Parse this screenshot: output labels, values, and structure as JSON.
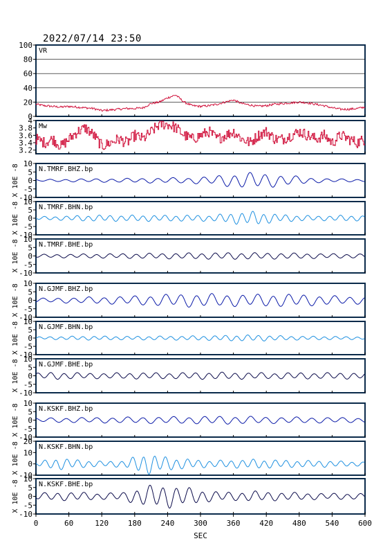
{
  "title": "2022/07/14 23:50",
  "colors": {
    "frame": "#0a2a4a",
    "vr": "#d0103a",
    "mw": "#d0103a",
    "bhz": "#0a1aa8",
    "bhn": "#1e90e0",
    "bhe": "#0a0a4a"
  },
  "x_axis": {
    "label": "SEC",
    "ticks": [
      0,
      60,
      120,
      180,
      240,
      300,
      360,
      420,
      480,
      540,
      600
    ],
    "range": [
      0,
      600
    ]
  },
  "chart_data": [
    {
      "type": "line",
      "panel": "vr",
      "label": "VR",
      "ylim": [
        0,
        100
      ],
      "yticks": [
        0,
        20,
        40,
        60,
        80,
        100
      ],
      "grid": true,
      "series": [
        {
          "x": [
            0,
            15,
            30,
            45,
            60,
            75,
            90,
            105,
            120,
            135,
            150,
            165,
            180,
            195,
            210,
            225,
            240,
            255,
            270,
            285,
            300,
            315,
            330,
            345,
            360,
            375,
            390,
            405,
            420,
            435,
            450,
            465,
            480,
            495,
            510,
            525,
            540,
            555,
            570,
            585,
            600
          ],
          "values": [
            17,
            15,
            14,
            13,
            14,
            13,
            12,
            11,
            8,
            9,
            10,
            11,
            11,
            12,
            18,
            20,
            26,
            30,
            20,
            15,
            14,
            15,
            17,
            20,
            23,
            18,
            16,
            14,
            15,
            17,
            18,
            19,
            20,
            19,
            17,
            15,
            12,
            10,
            10,
            11,
            13
          ]
        }
      ]
    },
    {
      "type": "line",
      "panel": "mw",
      "label": "Mw",
      "ylim": [
        3.1,
        4.0
      ],
      "yticks": [
        3.2,
        3.4,
        3.6,
        3.8,
        4.0
      ],
      "series": [
        {
          "x": [
            0,
            15,
            30,
            45,
            60,
            75,
            90,
            105,
            120,
            135,
            150,
            165,
            180,
            195,
            210,
            225,
            240,
            255,
            270,
            285,
            300,
            315,
            330,
            345,
            360,
            375,
            390,
            405,
            420,
            435,
            450,
            465,
            480,
            495,
            510,
            525,
            540,
            555,
            570,
            585,
            600
          ],
          "values": [
            3.5,
            3.4,
            3.5,
            3.3,
            3.5,
            3.7,
            3.8,
            3.6,
            3.3,
            3.4,
            3.5,
            3.4,
            3.6,
            3.5,
            3.7,
            3.9,
            3.9,
            3.8,
            3.6,
            3.5,
            3.6,
            3.7,
            3.5,
            3.6,
            3.7,
            3.5,
            3.4,
            3.6,
            3.7,
            3.5,
            3.5,
            3.6,
            3.7,
            3.6,
            3.5,
            3.6,
            3.4,
            3.6,
            3.5,
            3.4,
            3.5
          ]
        }
      ]
    },
    {
      "type": "line",
      "panel": "waveform",
      "label": "N.TMRF.BHZ.bp",
      "unit_label": "X 10E -8",
      "ylim": [
        -10,
        10
      ],
      "yticks": [
        -10,
        -5,
        0,
        5,
        10
      ],
      "color_key": "bhz",
      "series": [
        {
          "x": [
            0,
            40,
            80,
            120,
            160,
            200,
            240,
            280,
            320,
            360,
            400,
            440,
            480,
            520,
            560,
            600
          ],
          "amplitude": [
            0.5,
            0.6,
            0.8,
            0.9,
            1.0,
            1.2,
            1.3,
            1.5,
            2.0,
            3.5,
            4.0,
            3.0,
            2.0,
            1.0,
            0.8,
            0.6
          ]
        }
      ]
    },
    {
      "type": "line",
      "panel": "waveform",
      "label": "N.TMRF.BHN.bp",
      "unit_label": "X 10E -8",
      "ylim": [
        -10,
        10
      ],
      "yticks": [
        -10,
        -5,
        0,
        5,
        10
      ],
      "color_key": "bhn",
      "series": [
        {
          "x": [
            0,
            40,
            80,
            120,
            160,
            200,
            240,
            280,
            320,
            360,
            400,
            440,
            480,
            520,
            560,
            600
          ],
          "amplitude": [
            0.8,
            1.0,
            1.4,
            1.6,
            1.5,
            1.6,
            1.5,
            1.6,
            1.5,
            2.8,
            3.5,
            2.0,
            1.5,
            1.2,
            1.5,
            1.3
          ]
        }
      ]
    },
    {
      "type": "line",
      "panel": "waveform",
      "label": "N.TMRF.BHE.bp",
      "unit_label": "X 10E -8",
      "ylim": [
        -10,
        10
      ],
      "yticks": [
        -10,
        -5,
        0,
        5,
        10
      ],
      "color_key": "bhe",
      "series": [
        {
          "x": [
            0,
            40,
            80,
            120,
            160,
            200,
            240,
            280,
            320,
            360,
            400,
            440,
            480,
            520,
            560,
            600
          ],
          "amplitude": [
            0.8,
            0.9,
            1.0,
            1.1,
            1.2,
            1.3,
            1.4,
            1.5,
            1.6,
            1.7,
            1.6,
            1.5,
            1.4,
            1.2,
            1.1,
            1.0
          ]
        }
      ]
    },
    {
      "type": "line",
      "panel": "waveform",
      "label": "N.GJMF.BHZ.bp",
      "unit_label": "X 10E -8",
      "ylim": [
        -10,
        10
      ],
      "yticks": [
        -10,
        -5,
        0,
        5,
        10
      ],
      "color_key": "bhz",
      "series": [
        {
          "x": [
            0,
            40,
            80,
            120,
            160,
            200,
            240,
            280,
            320,
            360,
            400,
            440,
            480,
            520,
            560,
            600
          ],
          "amplitude": [
            1.0,
            1.2,
            1.5,
            1.8,
            2.0,
            2.5,
            3.0,
            3.3,
            3.2,
            3.0,
            3.0,
            3.2,
            3.0,
            2.5,
            2.0,
            1.8
          ]
        }
      ]
    },
    {
      "type": "line",
      "panel": "waveform",
      "label": "N.GJMF.BHN.bp",
      "unit_label": "X 10E -8",
      "ylim": [
        -10,
        10
      ],
      "yticks": [
        -10,
        -5,
        0,
        5,
        10
      ],
      "color_key": "bhn",
      "series": [
        {
          "x": [
            0,
            40,
            80,
            120,
            160,
            200,
            240,
            280,
            320,
            360,
            400,
            440,
            480,
            520,
            560,
            600
          ],
          "amplitude": [
            0.6,
            0.8,
            1.0,
            1.0,
            0.9,
            1.0,
            1.0,
            1.1,
            1.2,
            1.5,
            1.6,
            1.2,
            1.0,
            0.9,
            0.8,
            0.7
          ]
        }
      ]
    },
    {
      "type": "line",
      "panel": "waveform",
      "label": "N.GJMF.BHE.bp",
      "unit_label": "X 10E -8",
      "ylim": [
        -10,
        10
      ],
      "yticks": [
        -10,
        -5,
        0,
        5,
        10
      ],
      "color_key": "bhe",
      "series": [
        {
          "x": [
            0,
            40,
            80,
            120,
            160,
            200,
            240,
            280,
            320,
            360,
            400,
            440,
            480,
            520,
            560,
            600
          ],
          "amplitude": [
            1.5,
            1.8,
            1.5,
            1.4,
            1.5,
            1.6,
            1.5,
            1.6,
            1.8,
            1.7,
            1.6,
            1.5,
            1.6,
            1.5,
            1.6,
            1.5
          ]
        }
      ]
    },
    {
      "type": "line",
      "panel": "waveform",
      "label": "N.KSKF.BHZ.bp",
      "unit_label": "X 10E -8",
      "ylim": [
        -10,
        10
      ],
      "yticks": [
        -10,
        -5,
        0,
        5,
        10
      ],
      "color_key": "bhz",
      "series": [
        {
          "x": [
            0,
            40,
            80,
            120,
            160,
            200,
            240,
            280,
            320,
            360,
            400,
            440,
            480,
            520,
            560,
            600
          ],
          "amplitude": [
            1.0,
            1.2,
            1.3,
            1.4,
            1.5,
            1.6,
            1.7,
            1.8,
            2.0,
            2.0,
            1.8,
            1.6,
            1.5,
            1.4,
            1.3,
            1.2
          ]
        }
      ]
    },
    {
      "type": "line",
      "panel": "waveform",
      "label": "N.KSKF.BHN.bp",
      "unit_label": "X 10E -8",
      "ylim": [
        -10,
        20
      ],
      "yticks": [
        -10,
        0,
        10,
        20
      ],
      "color_key": "bhn",
      "series": [
        {
          "x": [
            0,
            40,
            80,
            120,
            160,
            200,
            240,
            280,
            320,
            360,
            400,
            440,
            480,
            520,
            560,
            600
          ],
          "amplitude": [
            1.5,
            4.5,
            3.0,
            2.0,
            2.5,
            8.0,
            5.0,
            3.5,
            2.5,
            3.0,
            3.5,
            3.0,
            2.5,
            2.5,
            2.0,
            1.5
          ]
        }
      ]
    },
    {
      "type": "line",
      "panel": "waveform",
      "label": "N.KSKF.BHE.bp",
      "unit_label": "X 10E -8",
      "ylim": [
        -10,
        10
      ],
      "yticks": [
        -10,
        -5,
        0,
        5,
        10
      ],
      "color_key": "bhe",
      "series": [
        {
          "x": [
            0,
            40,
            80,
            120,
            160,
            200,
            240,
            280,
            320,
            360,
            400,
            440,
            480,
            520,
            560,
            600
          ],
          "amplitude": [
            1.5,
            2.0,
            2.0,
            1.5,
            2.0,
            5.0,
            5.5,
            4.0,
            2.5,
            2.0,
            2.5,
            2.0,
            1.8,
            1.5,
            1.5,
            1.3
          ]
        }
      ]
    }
  ]
}
